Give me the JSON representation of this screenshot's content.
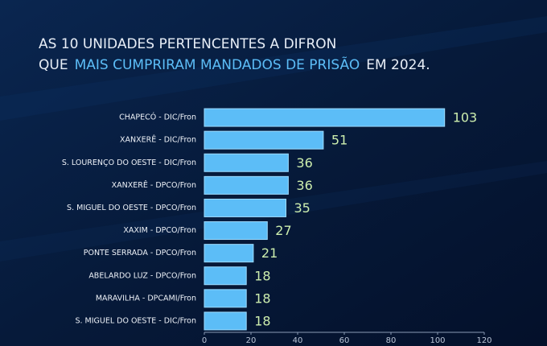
{
  "chart_data": {
    "type": "hbar",
    "title": {
      "line1": "AS 10 UNIDADES PERTENCENTES A DIFRON",
      "line2_start": "QUE",
      "line2_highlight": "MAIS CUMPRIRAM MANDADOS DE PRISÃO",
      "line2_end": "EM 2024."
    },
    "categories": [
      "CHAPECÓ - DIC/Fron",
      "XANXERÊ - DIC/Fron",
      "S. LOURENÇO DO OESTE - DIC/Fron",
      "XANXERÊ - DPCO/Fron",
      "S. MIGUEL DO OESTE - DPCO/Fron",
      "XAXIM - DPCO/Fron",
      "PONTE SERRADA - DPCO/Fron",
      "ABELARDO LUZ - DPCO/Fron",
      "MARAVILHA - DPCAMI/Fron",
      "S. MIGUEL DO OESTE - DIC/Fron"
    ],
    "values": [
      103,
      51,
      36,
      36,
      35,
      27,
      21,
      18,
      18,
      18
    ],
    "color": "#5cbdf7",
    "xlim": [
      0,
      120
    ],
    "xticks": [
      0,
      20,
      40,
      60,
      80,
      100,
      120
    ]
  }
}
